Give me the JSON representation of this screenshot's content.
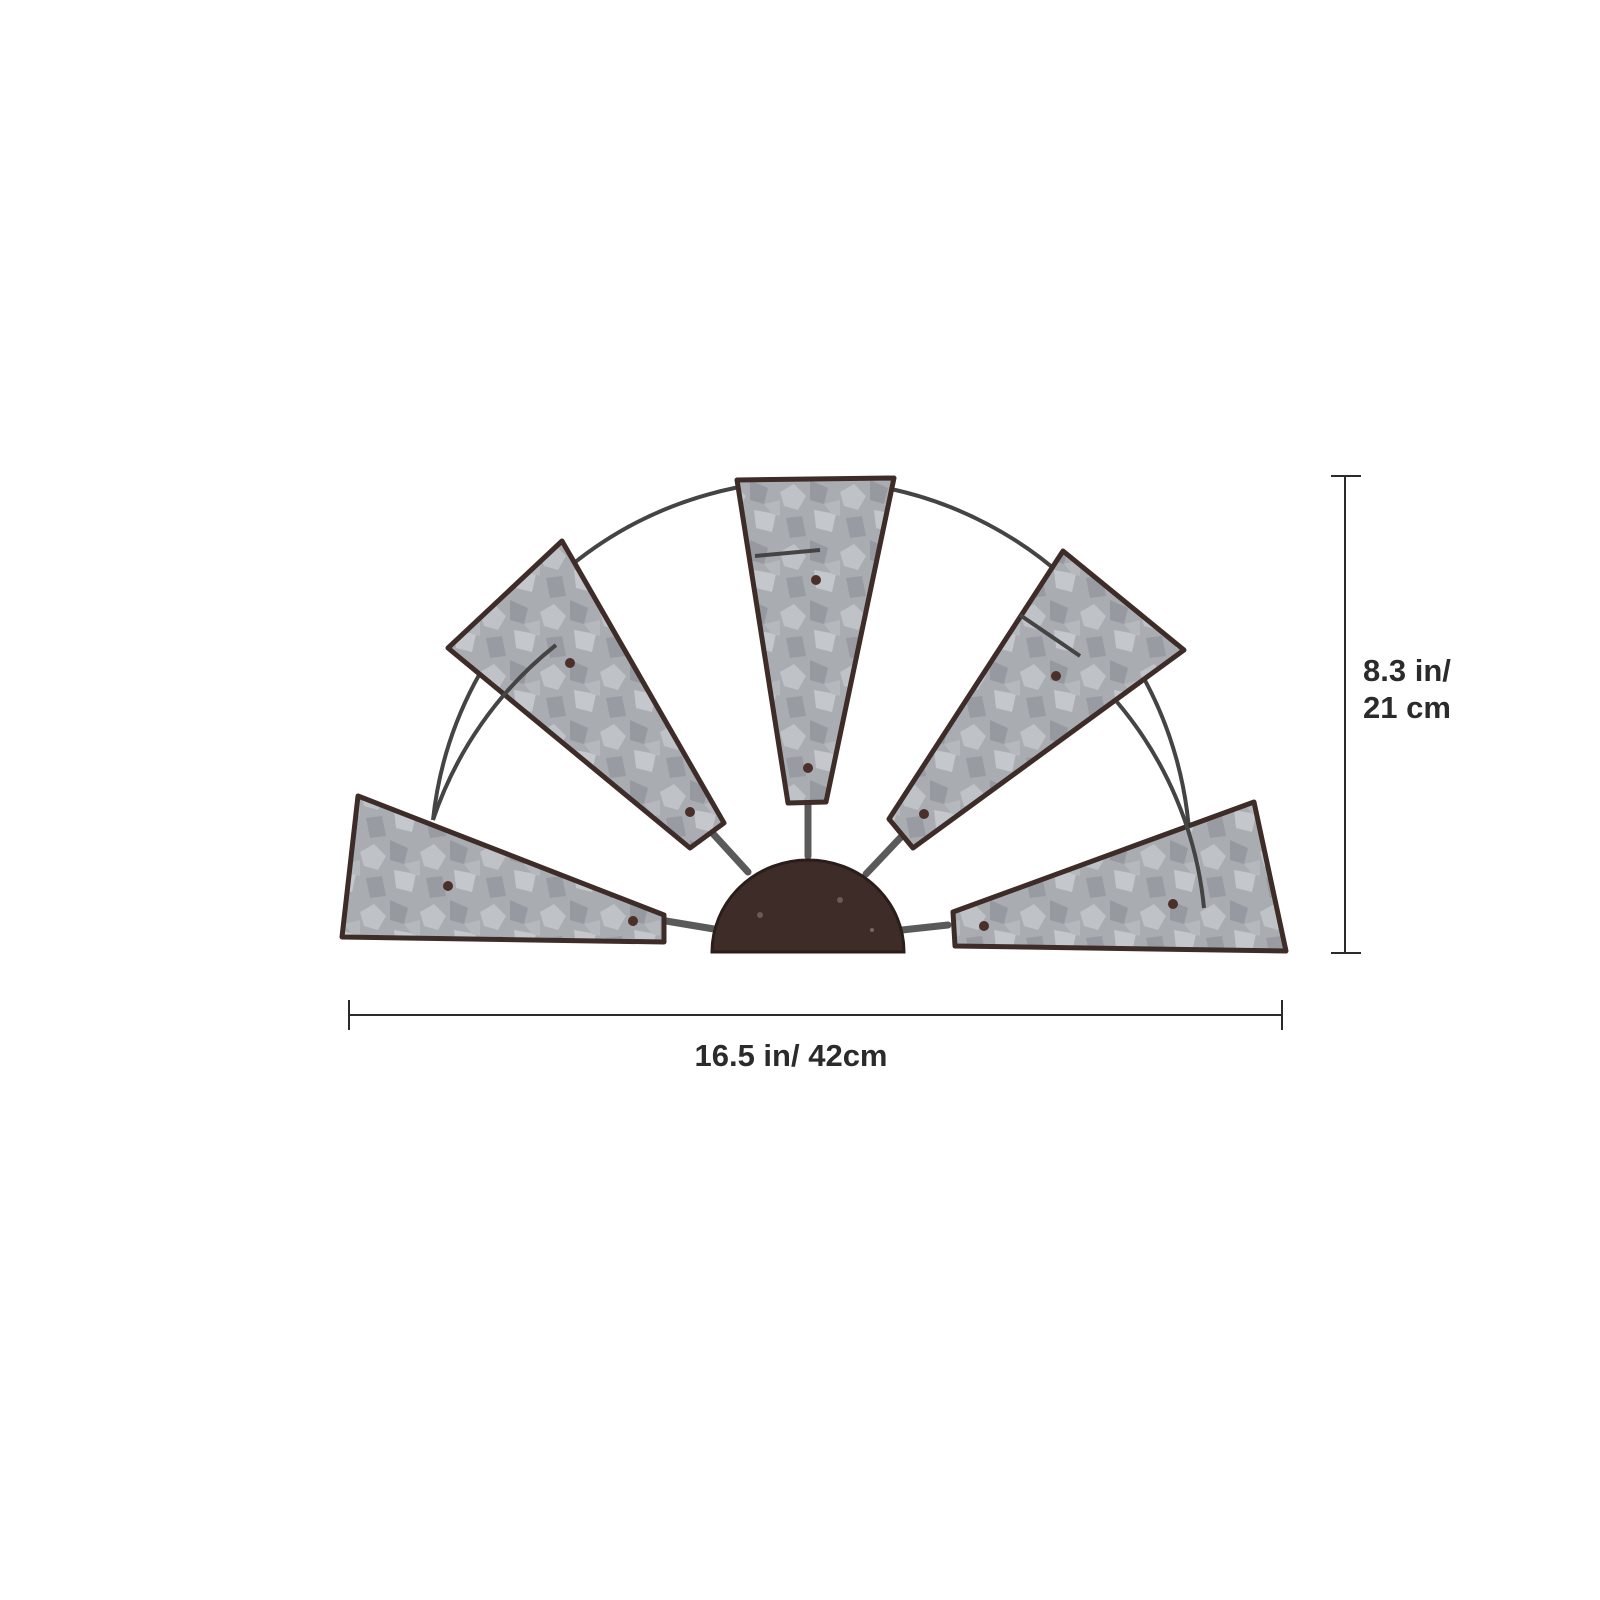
{
  "product": {
    "name": "windmill-wall-decor-icon",
    "colors": {
      "metal": "#a7abb0",
      "metal_dark": "#6f7378",
      "rust": "#3e2c28",
      "frame": "#444444",
      "dimension_line": "#2b2b2b"
    }
  },
  "dimensions": {
    "width_label": "16.5 in/ 42cm",
    "height_label_line1": "8.3 in/",
    "height_label_line2": "21 cm"
  }
}
